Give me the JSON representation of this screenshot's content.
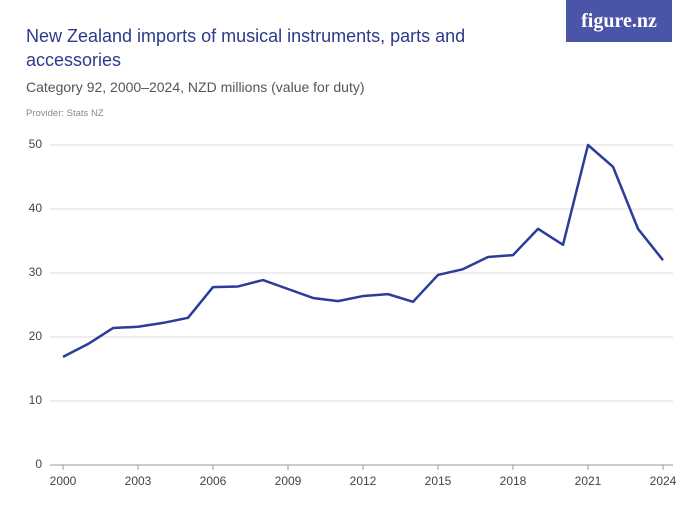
{
  "logo": "figure.nz",
  "chart_data": {
    "type": "line",
    "title": "New Zealand imports of musical instruments, parts and accessories",
    "subtitle": "Category 92, 2000–2024, NZD millions (value for duty)",
    "source": "Provider: Stats NZ",
    "x": [
      2000,
      2001,
      2002,
      2003,
      2004,
      2005,
      2006,
      2007,
      2008,
      2009,
      2010,
      2011,
      2012,
      2013,
      2014,
      2015,
      2016,
      2017,
      2018,
      2019,
      2020,
      2021,
      2022,
      2023,
      2024
    ],
    "series": [
      {
        "name": "Imports",
        "color": "#2b3d98",
        "values": [
          16.9,
          18.9,
          21.4,
          21.6,
          22.2,
          23.0,
          27.8,
          27.9,
          28.9,
          27.5,
          26.1,
          25.6,
          26.4,
          26.7,
          25.5,
          29.7,
          30.6,
          32.5,
          32.8,
          36.9,
          34.4,
          50.0,
          46.6,
          36.9,
          32.0
        ]
      }
    ],
    "xlim": [
      2000,
      2024
    ],
    "xticks": [
      2000,
      2003,
      2006,
      2009,
      2012,
      2015,
      2018,
      2021,
      2024
    ],
    "ylim": [
      0,
      50
    ],
    "yticks": [
      0,
      10,
      20,
      30,
      40,
      50
    ],
    "grid": true
  }
}
